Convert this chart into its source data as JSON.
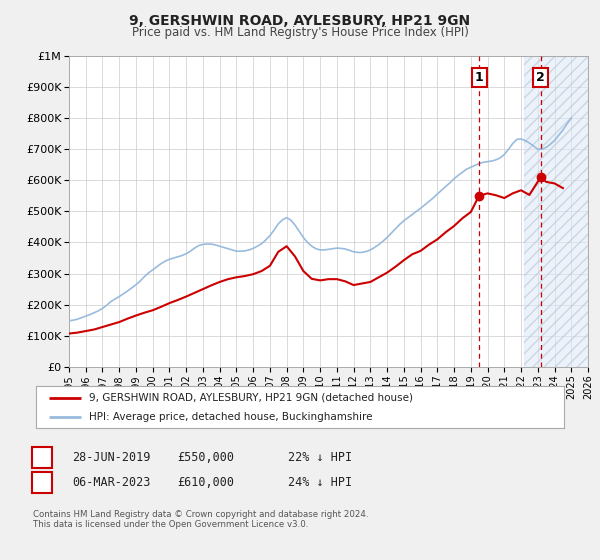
{
  "title": "9, GERSHWIN ROAD, AYLESBURY, HP21 9GN",
  "subtitle": "Price paid vs. HM Land Registry's House Price Index (HPI)",
  "ylim": [
    0,
    1000000
  ],
  "xlim": [
    1995,
    2026
  ],
  "yticks": [
    0,
    100000,
    200000,
    300000,
    400000,
    500000,
    600000,
    700000,
    800000,
    900000,
    1000000
  ],
  "xticks": [
    1995,
    1996,
    1997,
    1998,
    1999,
    2000,
    2001,
    2002,
    2003,
    2004,
    2005,
    2006,
    2007,
    2008,
    2009,
    2010,
    2011,
    2012,
    2013,
    2014,
    2015,
    2016,
    2017,
    2018,
    2019,
    2020,
    2021,
    2022,
    2023,
    2024,
    2025,
    2026
  ],
  "background_color": "#f0f0f0",
  "plot_bg_color": "#ffffff",
  "grid_color": "#cccccc",
  "red_line_color": "#cc0000",
  "hpi_line_color": "#99bbdd",
  "marker1_date": 2019.49,
  "marker1_price": 550000,
  "marker2_date": 2023.17,
  "marker2_price": 610000,
  "vline1_x": 2019.49,
  "vline2_x": 2023.17,
  "shade_start": 2022.17,
  "shade_end": 2026,
  "legend_label_red": "9, GERSHWIN ROAD, AYLESBURY, HP21 9GN (detached house)",
  "legend_label_blue": "HPI: Average price, detached house, Buckinghamshire",
  "table_row1": [
    "1",
    "28-JUN-2019",
    "£550,000",
    "22% ↓ HPI"
  ],
  "table_row2": [
    "2",
    "06-MAR-2023",
    "£610,000",
    "24% ↓ HPI"
  ],
  "footer_line1": "Contains HM Land Registry data © Crown copyright and database right 2024.",
  "footer_line2": "This data is licensed under the Open Government Licence v3.0.",
  "hpi_x": [
    1995.0,
    1995.25,
    1995.5,
    1995.75,
    1996.0,
    1996.25,
    1996.5,
    1996.75,
    1997.0,
    1997.25,
    1997.5,
    1997.75,
    1998.0,
    1998.25,
    1998.5,
    1998.75,
    1999.0,
    1999.25,
    1999.5,
    1999.75,
    2000.0,
    2000.25,
    2000.5,
    2000.75,
    2001.0,
    2001.25,
    2001.5,
    2001.75,
    2002.0,
    2002.25,
    2002.5,
    2002.75,
    2003.0,
    2003.25,
    2003.5,
    2003.75,
    2004.0,
    2004.25,
    2004.5,
    2004.75,
    2005.0,
    2005.25,
    2005.5,
    2005.75,
    2006.0,
    2006.25,
    2006.5,
    2006.75,
    2007.0,
    2007.25,
    2007.5,
    2007.75,
    2008.0,
    2008.25,
    2008.5,
    2008.75,
    2009.0,
    2009.25,
    2009.5,
    2009.75,
    2010.0,
    2010.25,
    2010.5,
    2010.75,
    2011.0,
    2011.25,
    2011.5,
    2011.75,
    2012.0,
    2012.25,
    2012.5,
    2012.75,
    2013.0,
    2013.25,
    2013.5,
    2013.75,
    2014.0,
    2014.25,
    2014.5,
    2014.75,
    2015.0,
    2015.25,
    2015.5,
    2015.75,
    2016.0,
    2016.25,
    2016.5,
    2016.75,
    2017.0,
    2017.25,
    2017.5,
    2017.75,
    2018.0,
    2018.25,
    2018.5,
    2018.75,
    2019.0,
    2019.25,
    2019.5,
    2019.75,
    2020.0,
    2020.25,
    2020.5,
    2020.75,
    2021.0,
    2021.25,
    2021.5,
    2021.75,
    2022.0,
    2022.25,
    2022.5,
    2022.75,
    2023.0,
    2023.25,
    2023.5,
    2023.75,
    2024.0,
    2024.25,
    2024.5,
    2024.75,
    2025.0
  ],
  "hpi_y": [
    148000,
    150000,
    153000,
    158000,
    163000,
    168000,
    174000,
    180000,
    188000,
    198000,
    210000,
    218000,
    226000,
    235000,
    244000,
    254000,
    264000,
    276000,
    290000,
    302000,
    312000,
    322000,
    332000,
    340000,
    346000,
    350000,
    354000,
    358000,
    364000,
    372000,
    382000,
    390000,
    394000,
    395000,
    395000,
    392000,
    388000,
    384000,
    380000,
    376000,
    372000,
    372000,
    373000,
    376000,
    381000,
    388000,
    396000,
    408000,
    422000,
    440000,
    460000,
    473000,
    480000,
    472000,
    456000,
    436000,
    416000,
    400000,
    388000,
    380000,
    376000,
    376000,
    378000,
    380000,
    382000,
    381000,
    379000,
    375000,
    370000,
    368000,
    368000,
    371000,
    376000,
    384000,
    393000,
    404000,
    416000,
    430000,
    444000,
    458000,
    470000,
    480000,
    490000,
    500000,
    510000,
    521000,
    532000,
    543000,
    556000,
    568000,
    580000,
    592000,
    605000,
    616000,
    626000,
    636000,
    642000,
    648000,
    654000,
    658000,
    660000,
    662000,
    666000,
    672000,
    683000,
    700000,
    718000,
    732000,
    733000,
    728000,
    720000,
    710000,
    700000,
    700000,
    706000,
    716000,
    728000,
    745000,
    762000,
    782000,
    800000
  ],
  "red_x": [
    1995.0,
    1995.5,
    1996.0,
    1996.5,
    1997.0,
    1997.5,
    1998.0,
    1998.5,
    1999.0,
    1999.5,
    2000.0,
    2000.5,
    2001.0,
    2001.5,
    2002.0,
    2002.5,
    2003.0,
    2003.5,
    2004.0,
    2004.5,
    2005.0,
    2005.5,
    2006.0,
    2006.5,
    2007.0,
    2007.5,
    2008.0,
    2008.5,
    2009.0,
    2009.5,
    2010.0,
    2010.5,
    2011.0,
    2011.5,
    2012.0,
    2012.5,
    2013.0,
    2013.5,
    2014.0,
    2014.5,
    2015.0,
    2015.5,
    2016.0,
    2016.5,
    2017.0,
    2017.5,
    2018.0,
    2018.5,
    2019.0,
    2019.49,
    2020.0,
    2020.5,
    2021.0,
    2021.5,
    2022.0,
    2022.5,
    2023.17,
    2023.5,
    2024.0,
    2024.5
  ],
  "red_y": [
    107000,
    110000,
    115000,
    120000,
    128000,
    136000,
    144000,
    155000,
    165000,
    174000,
    182000,
    193000,
    205000,
    215000,
    226000,
    238000,
    250000,
    262000,
    273000,
    282000,
    288000,
    292000,
    298000,
    308000,
    325000,
    370000,
    388000,
    355000,
    308000,
    283000,
    278000,
    282000,
    282000,
    275000,
    263000,
    268000,
    273000,
    288000,
    303000,
    322000,
    343000,
    362000,
    373000,
    393000,
    410000,
    433000,
    453000,
    478000,
    498000,
    550000,
    558000,
    552000,
    543000,
    558000,
    568000,
    553000,
    610000,
    595000,
    590000,
    575000
  ]
}
